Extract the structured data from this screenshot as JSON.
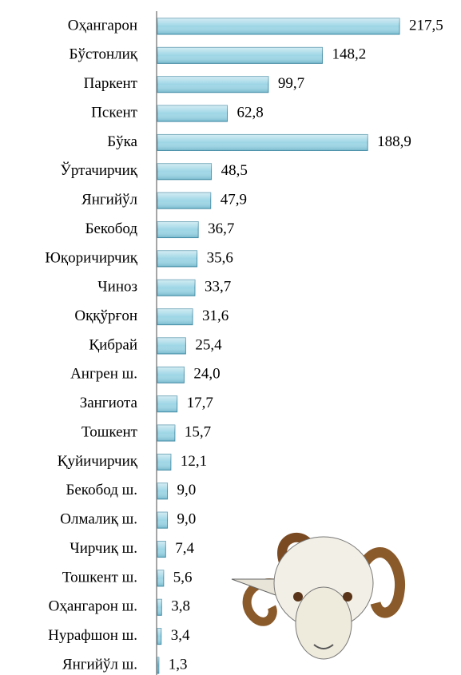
{
  "chart_data": {
    "type": "bar",
    "orientation": "horizontal",
    "color": "#9ed6e6",
    "categories": [
      "Оҳангарон",
      "Бўстонлиқ",
      "Паркент",
      "Пскент",
      "Бўка",
      "Ўртачирчиқ",
      "Янгийўл",
      "Бекобод",
      "Юқоричирчиқ",
      "Чиноз",
      "Оққўрғон",
      "Қибрай",
      "Ангрен ш.",
      "Зангиота",
      "Тошкент",
      "Қуйичирчиқ",
      "Бекобод ш.",
      "Олмалиқ ш.",
      "Чирчиқ ш.",
      "Тошкент ш.",
      "Оҳангарон ш.",
      "Нурафшон ш.",
      "Янгийўл ш."
    ],
    "values": [
      217.5,
      148.2,
      99.7,
      62.8,
      188.9,
      48.5,
      47.9,
      36.7,
      35.6,
      33.7,
      31.6,
      25.4,
      24.0,
      17.7,
      15.7,
      12.1,
      9.0,
      9.0,
      7.4,
      5.6,
      3.8,
      3.4,
      1.3
    ],
    "value_labels": [
      "217,5",
      "148,2",
      "99,7",
      "62,8",
      "188,9",
      "48,5",
      "47,9",
      "36,7",
      "35,6",
      "33,7",
      "31,6",
      "25,4",
      "24,0",
      "17,7",
      "15,7",
      "12,1",
      "9,0",
      "9,0",
      "7,4",
      "5,6",
      "3,8",
      "3,4",
      "1,3"
    ]
  }
}
